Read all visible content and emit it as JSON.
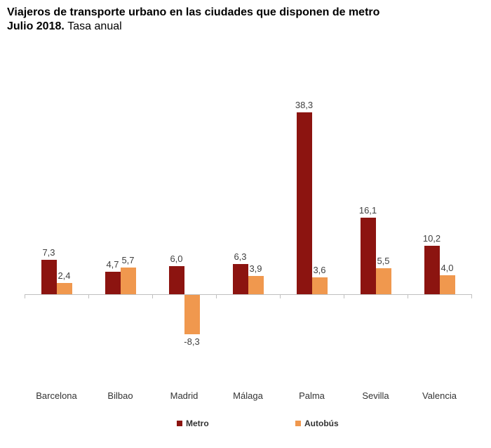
{
  "title": {
    "line1": "Viajeros de transporte urbano en las ciudades que disponen de metro",
    "line2_bold": "Julio 2018.",
    "line2_sub": "Tasa anual"
  },
  "legend": {
    "metro_label": "Metro",
    "autobus_label": "Autobús"
  },
  "colors": {
    "metro": "#8c1410",
    "autobus": "#f0984e",
    "axis": "#c0c0c0",
    "label_text": "#404040"
  },
  "chart_data": {
    "type": "bar",
    "title": "Viajeros de transporte urbano en las ciudades que disponen de metro. Julio 2018. Tasa anual",
    "categories": [
      "Barcelona",
      "Bilbao",
      "Madrid",
      "Málaga",
      "Palma",
      "Sevilla",
      "Valencia"
    ],
    "series": [
      {
        "name": "Metro",
        "color": "#8c1410",
        "values": [
          7.3,
          4.7,
          6.0,
          6.3,
          38.3,
          16.1,
          10.2
        ],
        "labels": [
          "7,3",
          "4,7",
          "6,0",
          "6,3",
          "38,3",
          "16,1",
          "10,2"
        ]
      },
      {
        "name": "Autobús",
        "color": "#f0984e",
        "values": [
          2.4,
          5.7,
          -8.3,
          3.9,
          3.6,
          5.5,
          4.0
        ],
        "labels": [
          "2,4",
          "5,7",
          "-8,3",
          "3,9",
          "3,6",
          "5,5",
          "4,0"
        ]
      }
    ],
    "xlabel": "",
    "ylabel": "",
    "ylim": [
      -10,
      42
    ],
    "grid": false,
    "legend_position": "bottom",
    "value_labels_shown": true,
    "decimal_separator": ","
  }
}
